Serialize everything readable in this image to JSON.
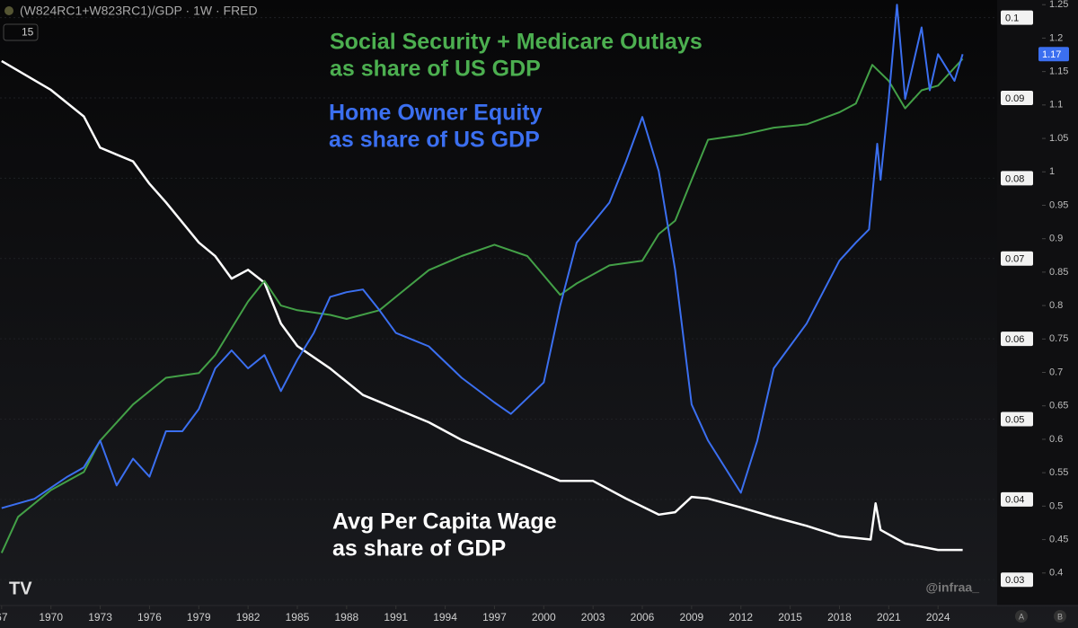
{
  "header": {
    "symbol": "(W824RC1+W823RC1)/GDP · 1W · FRED",
    "interval": "15",
    "watermark": "@infraa_",
    "buttons": [
      "A",
      "B"
    ]
  },
  "chart_data": {
    "type": "line",
    "annotations": [
      {
        "lines": [
          "Social Security + Medicare Outlays",
          "as share of US GDP"
        ],
        "color": "#4caf50"
      },
      {
        "lines": [
          "Home Owner Equity",
          "as share of US GDP"
        ],
        "color": "#3b6ff0"
      },
      {
        "lines": [
          "Avg Per Capita Wage",
          "as share of GDP"
        ],
        "color": "#ffffff"
      }
    ],
    "xlim": [
      1966.9,
      2027.6
    ],
    "xticks": [
      {
        "value": 1967,
        "label": "67"
      },
      1970,
      1973,
      1976,
      1979,
      1982,
      1985,
      1988,
      1991,
      1994,
      1997,
      2000,
      2003,
      2006,
      2009,
      2012,
      2015,
      2018,
      2021,
      2024
    ],
    "ylim": [
      0.027,
      0.1022
    ],
    "yticks": [
      0.03,
      0.04,
      0.05,
      0.06,
      0.07,
      0.08,
      0.09,
      0.1
    ],
    "y2lim": [
      0.354,
      1.257
    ],
    "y2ticks": [
      0.4,
      0.45,
      0.5,
      0.55,
      0.6,
      0.65,
      0.7,
      0.75,
      0.8,
      0.85,
      0.9,
      0.95,
      1,
      1.05,
      1.1,
      1.15,
      1.2,
      1.25
    ],
    "last_value_label": "1.17",
    "grid": true,
    "series": [
      {
        "color": "#ffffff",
        "axis": "y",
        "x": [
          1967,
          1970,
          1972,
          1973,
          1975,
          1976,
          1977,
          1979,
          1980,
          1981,
          1982,
          1983,
          1984,
          1985,
          1987,
          1989,
          1991,
          1993,
          1995,
          1997,
          1999,
          2001,
          2003,
          2005,
          2007,
          2008,
          2009,
          2010,
          2012,
          2014,
          2016,
          2018,
          2019.9,
          2020.2,
          2020.5,
          2022,
          2024,
          2025.5
        ],
        "values": [
          0.0946,
          0.091,
          0.0877,
          0.0838,
          0.0821,
          0.0793,
          0.077,
          0.072,
          0.0703,
          0.0675,
          0.0686,
          0.067,
          0.0619,
          0.0591,
          0.0563,
          0.053,
          0.0513,
          0.0496,
          0.0474,
          0.0457,
          0.044,
          0.0423,
          0.0423,
          0.0401,
          0.0381,
          0.0384,
          0.0403,
          0.0401,
          0.039,
          0.0378,
          0.0367,
          0.0354,
          0.035,
          0.0395,
          0.0362,
          0.0345,
          0.0337,
          0.0337
        ]
      },
      {
        "color": "#43a047",
        "axis": "y2",
        "x": [
          1967,
          1968,
          1970,
          1972,
          1973,
          1975,
          1977,
          1979,
          1980,
          1981,
          1982,
          1983,
          1984,
          1985,
          1987,
          1988,
          1990,
          1991,
          1993,
          1995,
          1997,
          1999,
          2001,
          2002,
          2004,
          2006,
          2007,
          2008,
          2009,
          2010,
          2012,
          2014,
          2016,
          2018,
          2019,
          2020,
          2021,
          2022,
          2023,
          2024,
          2025.5
        ],
        "values": [
          0.43,
          0.484,
          0.524,
          0.551,
          0.598,
          0.652,
          0.692,
          0.699,
          0.726,
          0.766,
          0.806,
          0.837,
          0.8,
          0.793,
          0.786,
          0.78,
          0.793,
          0.813,
          0.853,
          0.874,
          0.891,
          0.874,
          0.816,
          0.833,
          0.86,
          0.867,
          0.907,
          0.927,
          0.988,
          1.048,
          1.055,
          1.066,
          1.071,
          1.089,
          1.102,
          1.16,
          1.136,
          1.095,
          1.122,
          1.129,
          1.169
        ]
      },
      {
        "color": "#3b6ff0",
        "axis": "y2",
        "x": [
          1967,
          1969,
          1971,
          1972,
          1973,
          1974,
          1975,
          1976,
          1977,
          1978,
          1979,
          1980,
          1981,
          1982,
          1983,
          1984,
          1985,
          1986,
          1987,
          1988,
          1989,
          1990,
          1991,
          1993,
          1995,
          1997,
          1998,
          2000,
          2001,
          2002,
          2004,
          2005,
          2006,
          2007,
          2008,
          2009,
          2010,
          2012,
          2013,
          2014,
          2016,
          2018,
          2019,
          2019.8,
          2020.3,
          2020.5,
          2021,
          2021.5,
          2022,
          2023,
          2023.5,
          2024,
          2025,
          2025.5
        ],
        "values": [
          0.497,
          0.511,
          0.544,
          0.558,
          0.598,
          0.531,
          0.571,
          0.544,
          0.612,
          0.612,
          0.645,
          0.706,
          0.733,
          0.706,
          0.726,
          0.672,
          0.719,
          0.759,
          0.813,
          0.82,
          0.824,
          0.793,
          0.759,
          0.739,
          0.692,
          0.655,
          0.638,
          0.685,
          0.8,
          0.894,
          0.954,
          1.015,
          1.082,
          1.001,
          0.853,
          0.652,
          0.598,
          0.52,
          0.598,
          0.706,
          0.773,
          0.867,
          0.894,
          0.914,
          1.042,
          0.988,
          1.109,
          1.25,
          1.109,
          1.216,
          1.122,
          1.176,
          1.136,
          1.176
        ]
      }
    ]
  }
}
